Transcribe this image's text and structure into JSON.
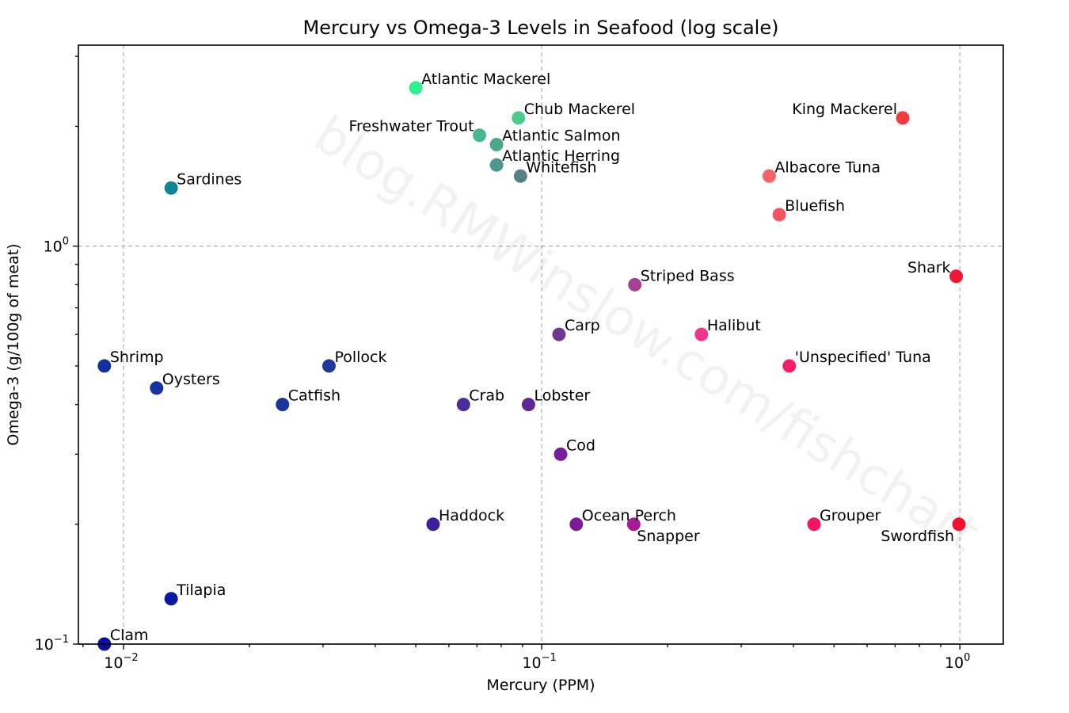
{
  "chart_data": {
    "type": "scatter",
    "title": "Mercury vs Omega-3 Levels in Seafood (log scale)",
    "xlabel": "Mercury (PPM)",
    "ylabel": "Omega-3 (g/100g of meat)",
    "xscale": "log",
    "yscale": "log",
    "xlim": [
      0.0078,
      1.27
    ],
    "ylim": [
      0.1,
      3.2
    ],
    "grid": true,
    "watermark": "blog.RMWinslow.com/fishchart",
    "x_ticks": [
      {
        "base": "10",
        "exp": "−2",
        "value": 0.01
      },
      {
        "base": "10",
        "exp": "−1",
        "value": 0.1
      },
      {
        "base": "10",
        "exp": "0",
        "value": 1
      }
    ],
    "y_ticks": [
      {
        "base": "10",
        "exp": "−1",
        "value": 0.1
      },
      {
        "base": "10",
        "exp": "0",
        "value": 1
      }
    ],
    "points": [
      {
        "label": "Atlantic Mackerel",
        "x": 0.05,
        "y": 2.5,
        "color": "#2ef08f",
        "anchor": "right"
      },
      {
        "label": "Chub Mackerel",
        "x": 0.088,
        "y": 2.1,
        "color": "#4ccb8a",
        "anchor": "right"
      },
      {
        "label": "Freshwater Trout",
        "x": 0.071,
        "y": 1.9,
        "color": "#46b88e",
        "anchor": "left"
      },
      {
        "label": "Atlantic Salmon",
        "x": 0.078,
        "y": 1.8,
        "color": "#4aa98a",
        "anchor": "right"
      },
      {
        "label": "Atlantic Herring",
        "x": 0.078,
        "y": 1.6,
        "color": "#4f978d",
        "anchor": "right"
      },
      {
        "label": "Whitefish",
        "x": 0.089,
        "y": 1.5,
        "color": "#567f86",
        "anchor": "right"
      },
      {
        "label": "Sardines",
        "x": 0.013,
        "y": 1.4,
        "color": "#108593",
        "anchor": "right"
      },
      {
        "label": "King Mackerel",
        "x": 0.73,
        "y": 2.1,
        "color": "#f53a3f",
        "anchor": "left"
      },
      {
        "label": "Albacore Tuna",
        "x": 0.35,
        "y": 1.5,
        "color": "#f56369",
        "anchor": "right"
      },
      {
        "label": "Bluefish",
        "x": 0.37,
        "y": 1.2,
        "color": "#f55262",
        "anchor": "right"
      },
      {
        "label": "Shark",
        "x": 0.98,
        "y": 0.84,
        "color": "#f31535",
        "anchor": "left"
      },
      {
        "label": "Striped Bass",
        "x": 0.167,
        "y": 0.8,
        "color": "#a34391",
        "anchor": "right"
      },
      {
        "label": "Carp",
        "x": 0.11,
        "y": 0.6,
        "color": "#6e3891",
        "anchor": "right"
      },
      {
        "label": "Halibut",
        "x": 0.241,
        "y": 0.6,
        "color": "#f2358a",
        "anchor": "right"
      },
      {
        "label": "'Unspecified' Tuna",
        "x": 0.391,
        "y": 0.5,
        "color": "#f61d6c",
        "anchor": "right"
      },
      {
        "label": "Shrimp",
        "x": 0.009,
        "y": 0.5,
        "color": "#12309e",
        "anchor": "right"
      },
      {
        "label": "Pollock",
        "x": 0.031,
        "y": 0.5,
        "color": "#21399b",
        "anchor": "right"
      },
      {
        "label": "Oysters",
        "x": 0.012,
        "y": 0.44,
        "color": "#1433a2",
        "anchor": "right"
      },
      {
        "label": "Catfish",
        "x": 0.024,
        "y": 0.4,
        "color": "#1a3499",
        "anchor": "right"
      },
      {
        "label": "Crab",
        "x": 0.065,
        "y": 0.4,
        "color": "#4e2b9b",
        "anchor": "right"
      },
      {
        "label": "Lobster",
        "x": 0.093,
        "y": 0.4,
        "color": "#5e2796",
        "anchor": "right"
      },
      {
        "label": "Cod",
        "x": 0.111,
        "y": 0.3,
        "color": "#761f9e",
        "anchor": "right"
      },
      {
        "label": "Haddock",
        "x": 0.055,
        "y": 0.2,
        "color": "#3f1d9e",
        "anchor": "right"
      },
      {
        "label": "Ocean Perch",
        "x": 0.121,
        "y": 0.2,
        "color": "#7e1b98",
        "anchor": "right"
      },
      {
        "label": "Snapper",
        "x": 0.166,
        "y": 0.2,
        "color": "#a91a9b",
        "anchor": "below"
      },
      {
        "label": "Grouper",
        "x": 0.448,
        "y": 0.2,
        "color": "#f51561",
        "anchor": "right"
      },
      {
        "label": "Swordfish",
        "x": 0.995,
        "y": 0.2,
        "color": "#f5102f",
        "anchor": "below-left"
      },
      {
        "label": "Tilapia",
        "x": 0.013,
        "y": 0.13,
        "color": "#0b18a2",
        "anchor": "right"
      },
      {
        "label": "Clam",
        "x": 0.009,
        "y": 0.1,
        "color": "#0a10a4",
        "anchor": "right"
      }
    ]
  }
}
